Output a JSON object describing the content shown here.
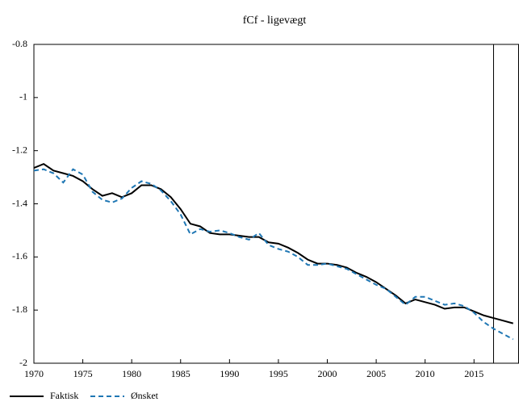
{
  "chart_data": {
    "type": "line",
    "title": "fCf - ligevægt",
    "x": [
      1970,
      1971,
      1972,
      1973,
      1974,
      1975,
      1976,
      1977,
      1978,
      1979,
      1980,
      1981,
      1982,
      1983,
      1984,
      1985,
      1986,
      1987,
      1988,
      1989,
      1990,
      1991,
      1992,
      1993,
      1994,
      1995,
      1996,
      1997,
      1998,
      1999,
      2000,
      2001,
      2002,
      2003,
      2004,
      2005,
      2006,
      2007,
      2008,
      2009,
      2010,
      2011,
      2012,
      2013,
      2014,
      2015,
      2016,
      2017,
      2018,
      2019
    ],
    "series": [
      {
        "name": "Faktisk",
        "color": "#000000",
        "dash": "none",
        "values": [
          -1.265,
          -1.25,
          -1.275,
          -1.285,
          -1.295,
          -1.315,
          -1.345,
          -1.37,
          -1.36,
          -1.375,
          -1.36,
          -1.33,
          -1.33,
          -1.345,
          -1.375,
          -1.42,
          -1.475,
          -1.485,
          -1.51,
          -1.515,
          -1.515,
          -1.52,
          -1.525,
          -1.525,
          -1.545,
          -1.55,
          -1.565,
          -1.585,
          -1.61,
          -1.625,
          -1.625,
          -1.63,
          -1.64,
          -1.66,
          -1.675,
          -1.695,
          -1.72,
          -1.745,
          -1.775,
          -1.76,
          -1.77,
          -1.78,
          -1.795,
          -1.79,
          -1.79,
          -1.805,
          -1.82,
          -1.83,
          -1.84,
          -1.85
        ]
      },
      {
        "name": "Ønsket",
        "color": "#1f77b4",
        "dash": "6,4",
        "values": [
          -1.275,
          -1.27,
          -1.285,
          -1.32,
          -1.27,
          -1.29,
          -1.355,
          -1.385,
          -1.395,
          -1.38,
          -1.34,
          -1.315,
          -1.325,
          -1.35,
          -1.39,
          -1.44,
          -1.515,
          -1.495,
          -1.505,
          -1.5,
          -1.51,
          -1.525,
          -1.535,
          -1.51,
          -1.555,
          -1.57,
          -1.58,
          -1.6,
          -1.63,
          -1.63,
          -1.625,
          -1.635,
          -1.645,
          -1.665,
          -1.685,
          -1.705,
          -1.72,
          -1.75,
          -1.78,
          -1.75,
          -1.75,
          -1.765,
          -1.78,
          -1.775,
          -1.785,
          -1.81,
          -1.845,
          -1.87,
          -1.89,
          -1.91
        ]
      }
    ],
    "xlim": [
      1970,
      2019.6
    ],
    "xticks": [
      1970,
      1975,
      1980,
      1985,
      1990,
      1995,
      2000,
      2005,
      2010,
      2015
    ],
    "ylim": [
      -2,
      -0.8
    ],
    "yticks": [
      -2,
      -1.8,
      -1.6,
      -1.4,
      -1.2,
      -1,
      -0.8
    ],
    "vline": 2017,
    "legend": "bottom-left",
    "grid": false
  }
}
